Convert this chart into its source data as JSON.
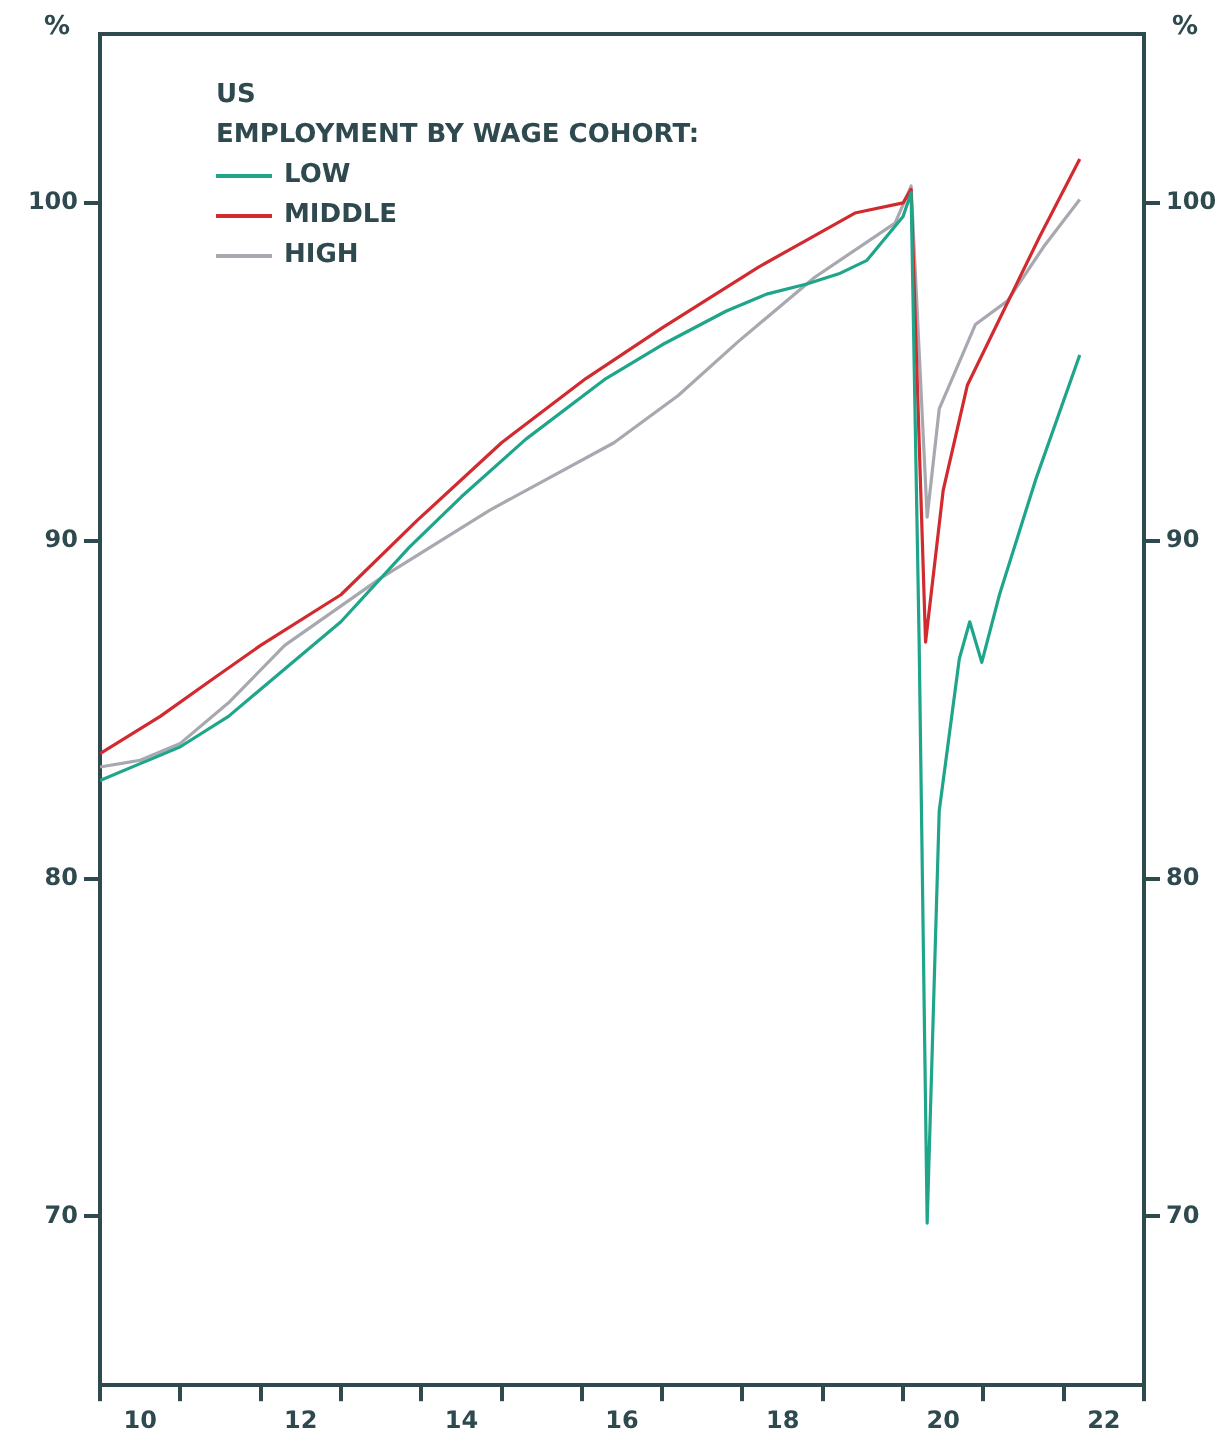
{
  "chart_data": {
    "type": "line",
    "title": "US",
    "legend_title": "EMPLOYMENT BY WAGE COHORT:",
    "ylabel": "%",
    "y2label": "%",
    "xlim": [
      9.5,
      22.5
    ],
    "xticks": [
      {
        "value": 9.5,
        "label": null
      },
      10,
      {
        "value": 10.5,
        "label": null
      },
      {
        "value": 11.5,
        "label": null
      },
      12,
      {
        "value": 12.5,
        "label": null
      },
      {
        "value": 13.5,
        "label": null
      },
      14,
      {
        "value": 14.5,
        "label": null
      },
      {
        "value": 15.5,
        "label": null
      },
      16,
      {
        "value": 16.5,
        "label": null
      },
      {
        "value": 17.5,
        "label": null
      },
      18,
      {
        "value": 18.5,
        "label": null
      },
      {
        "value": 19.5,
        "label": null
      },
      20,
      {
        "value": 20.5,
        "label": null
      },
      {
        "value": 21.5,
        "label": null
      },
      22,
      {
        "value": 22.5,
        "label": null
      }
    ],
    "ylim": [
      65,
      105
    ],
    "yticks": [
      70,
      80,
      90,
      100
    ],
    "y2lim": [
      65,
      105
    ],
    "y2ticks": [
      70,
      80,
      90,
      100
    ],
    "legend": "top left",
    "grid": false,
    "marker": "none",
    "line_style": "solid",
    "series": [
      {
        "name": "LOW",
        "color": "#1fa58a",
        "x": [
          9.5,
          10,
          10.5,
          11.1,
          11.8,
          12.5,
          13.35,
          14,
          14.8,
          15.8,
          16.5,
          17.3,
          17.8,
          18.3,
          18.7,
          19.05,
          19.5,
          19.6,
          19.7,
          19.8,
          19.95,
          20.2,
          20.33,
          20.48,
          20.7,
          21.15,
          21.7
        ],
        "values": [
          82.9,
          83.4,
          83.9,
          84.8,
          86.2,
          87.6,
          89.8,
          91.3,
          93.0,
          94.8,
          95.8,
          96.8,
          97.3,
          97.6,
          97.9,
          98.3,
          99.6,
          100.3,
          87,
          69.8,
          82.0,
          86.5,
          87.6,
          86.4,
          88.4,
          91.8,
          95.5
        ]
      },
      {
        "name": "MIDDLE",
        "color": "#d12a2f",
        "x": [
          9.5,
          10.25,
          10.9,
          11.5,
          12.5,
          13.45,
          14.5,
          15.55,
          16.5,
          17.7,
          18.3,
          18.9,
          19.5,
          19.6,
          19.78,
          20,
          20.3,
          20.75,
          21.2,
          21.7
        ],
        "values": [
          83.7,
          84.8,
          85.9,
          86.9,
          88.4,
          90.6,
          92.9,
          94.8,
          96.3,
          98.1,
          98.9,
          99.7,
          100.0,
          100.4,
          87.0,
          91.5,
          94.6,
          96.8,
          99.0,
          101.3
        ]
      },
      {
        "name": "HIGH",
        "color": "#a8a8b0",
        "x": [
          9.5,
          10,
          10.5,
          11.1,
          11.8,
          13,
          14.35,
          15.9,
          16.7,
          17.45,
          18.4,
          19.4,
          19.6,
          19.8,
          19.95,
          20.4,
          20.8,
          21.25,
          21.7
        ],
        "values": [
          83.3,
          83.5,
          84.0,
          85.2,
          86.9,
          88.9,
          90.9,
          92.9,
          94.3,
          95.9,
          97.8,
          99.4,
          100.5,
          90.7,
          93.9,
          96.4,
          97.1,
          98.7,
          100.1
        ]
      }
    ]
  }
}
